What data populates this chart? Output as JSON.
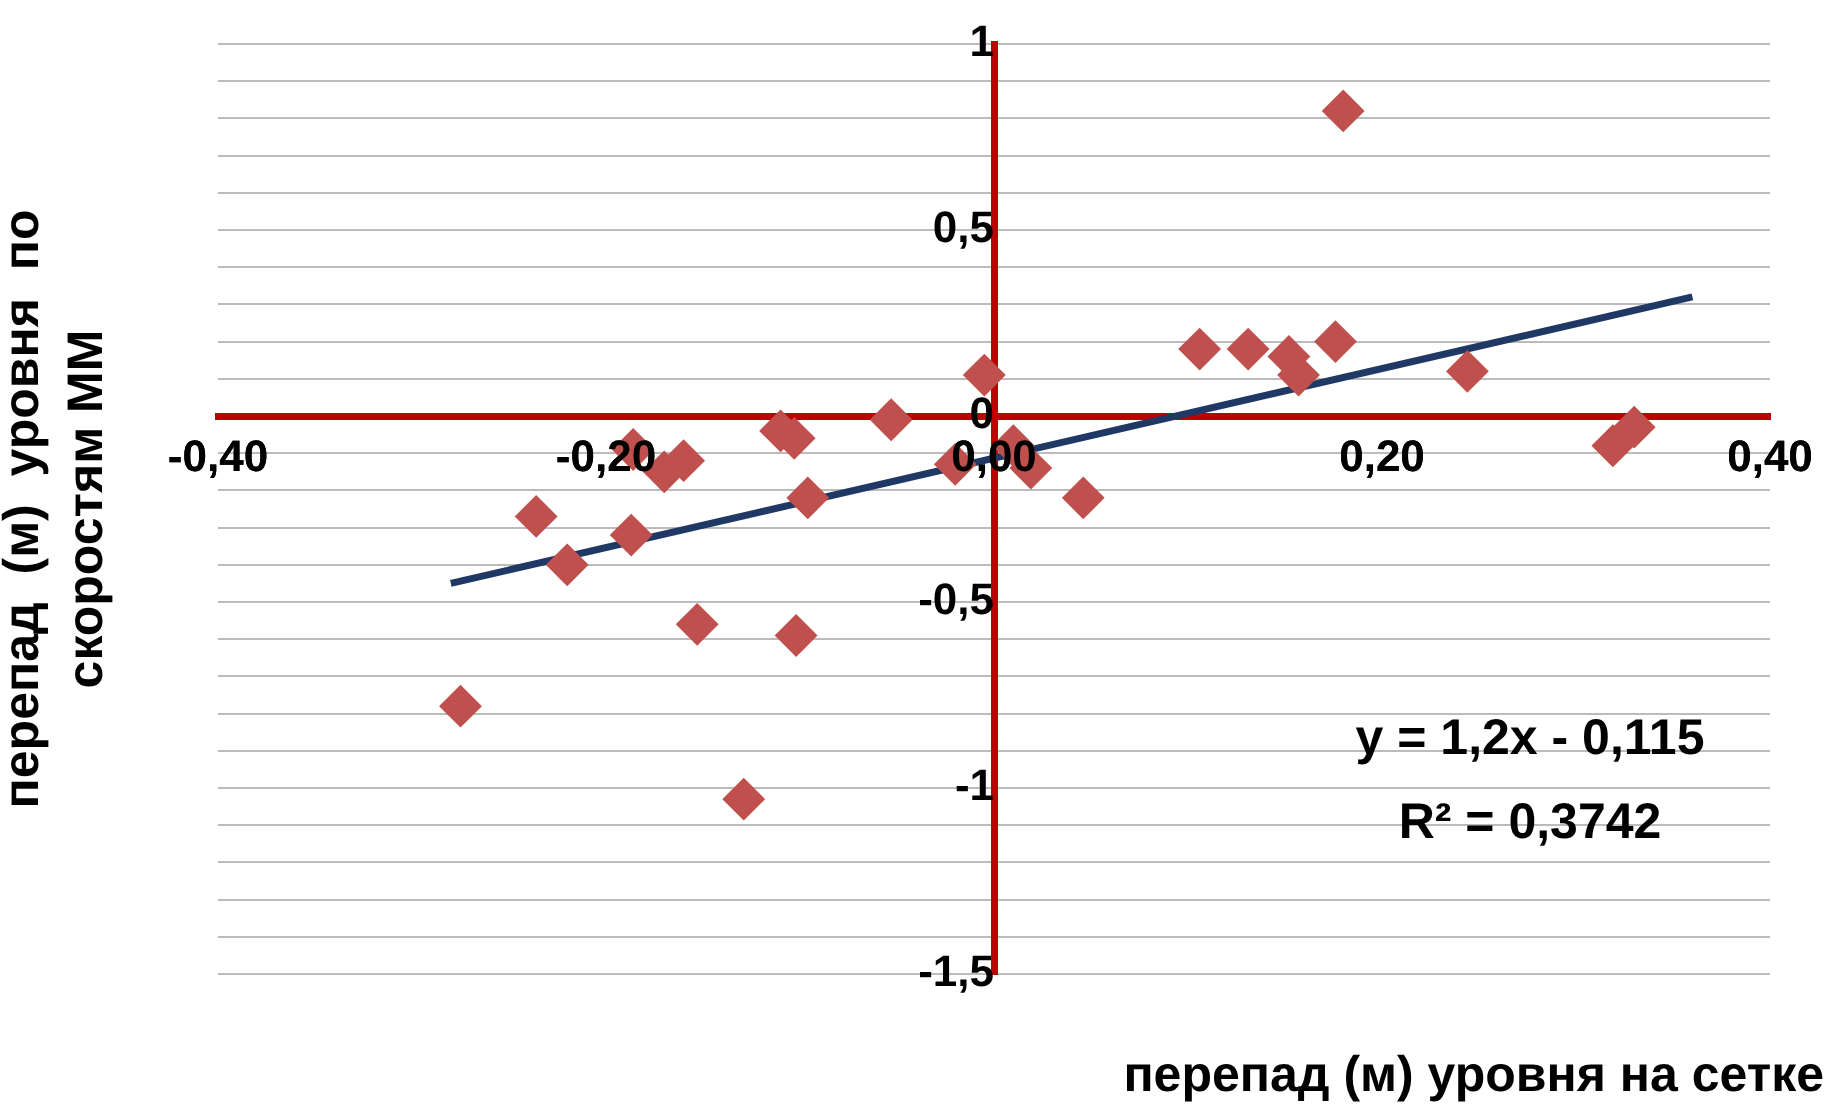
{
  "chart_data": {
    "type": "scatter",
    "xlabel": "перепад (м) уровня на сетке",
    "ylabel": "перепад  (м)  уровня  по скоростям ММ",
    "x": [
      -0.275,
      -0.236,
      -0.22,
      -0.186,
      -0.187,
      -0.17,
      -0.16,
      -0.153,
      -0.129,
      -0.11,
      -0.103,
      -0.096,
      -0.102,
      -0.053,
      -0.02,
      -0.005,
      0.01,
      0.019,
      0.046,
      0.106,
      0.131,
      0.152,
      0.157,
      0.176,
      0.18,
      0.244,
      0.319,
      0.33
    ],
    "series": [
      {
        "type": "scatter",
        "color": "#c0504d",
        "values": [
          -0.78,
          -0.27,
          -0.4,
          -0.09,
          -0.32,
          -0.15,
          -0.12,
          -0.56,
          -1.03,
          -0.04,
          -0.06,
          -0.22,
          -0.59,
          -0.01,
          -0.13,
          0.11,
          -0.08,
          -0.14,
          -0.22,
          0.18,
          0.18,
          0.16,
          0.11,
          0.2,
          0.82,
          0.12,
          -0.08,
          -0.03
        ]
      },
      {
        "type": "line",
        "color": "#1f3864",
        "marker": "none",
        "x": [
          -0.28,
          0.36
        ],
        "values": [
          -0.45,
          0.32
        ]
      }
    ],
    "marker": "diamond",
    "grid": "y",
    "xlim": [
      -0.4,
      0.4
    ],
    "ylim": [
      -1.5,
      1
    ],
    "xticks": [
      {
        "value": -0.4,
        "label": "-0,40"
      },
      {
        "value": -0.2,
        "label": "-0,20"
      },
      {
        "value": 0,
        "label": "0,00"
      },
      {
        "value": 0.2,
        "label": "0,20"
      },
      {
        "value": 0.4,
        "label": "0,40"
      }
    ],
    "yticks": [
      {
        "value": -1.5,
        "label": "-1,5"
      },
      {
        "value": -1.4,
        "label": null
      },
      {
        "value": -1.3,
        "label": null
      },
      {
        "value": -1.2,
        "label": null
      },
      {
        "value": -1.1,
        "label": null
      },
      -1,
      {
        "value": -0.9,
        "label": null
      },
      {
        "value": -0.8,
        "label": null
      },
      {
        "value": -0.7,
        "label": null
      },
      {
        "value": -0.6,
        "label": null
      },
      {
        "value": -0.5,
        "label": "-0,5"
      },
      {
        "value": -0.4,
        "label": null
      },
      {
        "value": -0.3,
        "label": null
      },
      {
        "value": -0.2,
        "label": null
      },
      {
        "value": -0.1,
        "label": null
      },
      0,
      {
        "value": 0.1,
        "label": null
      },
      {
        "value": 0.2,
        "label": null
      },
      {
        "value": 0.3,
        "label": null
      },
      {
        "value": 0.4,
        "label": null
      },
      {
        "value": 0.5,
        "label": "0,5"
      },
      {
        "value": 0.6,
        "label": null
      },
      {
        "value": 0.7,
        "label": null
      },
      {
        "value": 0.8,
        "label": null
      },
      {
        "value": 0.9,
        "label": null
      },
      1
    ],
    "annotations": [
      "y = 1,2x - 0,115",
      "R² = 0,3742"
    ]
  }
}
